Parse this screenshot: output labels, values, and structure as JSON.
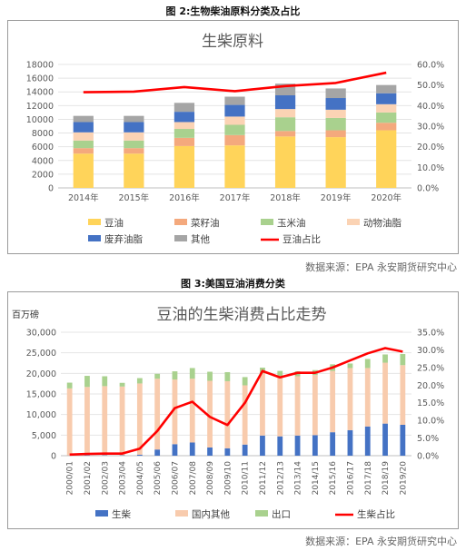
{
  "figure1": {
    "caption": "图 2:生物柴油原料分类及占比",
    "source": "数据来源：EPA  永安期货研究中心",
    "chart_data": {
      "type": "bar",
      "title": "生柴原料",
      "categories": [
        "2014年",
        "2015年",
        "2016年",
        "2017年",
        "2018年",
        "2019年",
        "2020年"
      ],
      "y_ticks": [
        "0",
        "2000",
        "4000",
        "6000",
        "8000",
        "10000",
        "12000",
        "14000",
        "16000",
        "18000"
      ],
      "y2_ticks": [
        "0.0%",
        "10.0%",
        "20.0%",
        "30.0%",
        "40.0%",
        "50.0%",
        "60.0%"
      ],
      "ylim": [
        0,
        18000
      ],
      "y2lim": [
        0,
        0.6
      ],
      "grid": true,
      "legend_position": "bottom",
      "series": [
        {
          "name": "豆油",
          "color": "#ffd45a",
          "values": [
            5000,
            5000,
            6100,
            6200,
            7500,
            7400,
            8400
          ]
        },
        {
          "name": "菜籽油",
          "color": "#f4a97d",
          "values": [
            800,
            800,
            1200,
            1500,
            800,
            1000,
            1100
          ]
        },
        {
          "name": "玉米油",
          "color": "#a9d18e",
          "values": [
            1100,
            1100,
            1300,
            1500,
            2000,
            1800,
            1500
          ]
        },
        {
          "name": "动物油脂",
          "color": "#fbd3b4",
          "values": [
            1200,
            1200,
            1000,
            1200,
            1200,
            1200,
            1200
          ]
        },
        {
          "name": "废弃油脂",
          "color": "#4472c4",
          "values": [
            1500,
            1500,
            1500,
            1700,
            2000,
            1700,
            1600
          ]
        },
        {
          "name": "其他",
          "color": "#a5a5a5",
          "values": [
            900,
            900,
            1300,
            1200,
            1700,
            1400,
            1200
          ]
        }
      ],
      "line_series": [
        {
          "name": "豆油占比",
          "color": "#ff0000",
          "axis": "right",
          "values": [
            0.465,
            0.468,
            0.49,
            0.47,
            0.495,
            0.51,
            0.56
          ]
        }
      ]
    }
  },
  "figure2": {
    "caption": "图 3:美国豆油消费分类",
    "source": "数据来源：EPA  永安期货研究中心",
    "chart_data": {
      "type": "bar",
      "title": "豆油的生柴消费占比走势",
      "ylabel": "百万磅",
      "categories": [
        "2000/01",
        "2001/02",
        "2002/03",
        "2003/04",
        "2004/05",
        "2005/06",
        "2006/07",
        "2007/08",
        "2008/09",
        "2009/10",
        "2010/11",
        "2011/12",
        "2012/13",
        "2013/14",
        "2014/15",
        "2015/16",
        "2016/17",
        "2017/18",
        "2018/19",
        "2019/20"
      ],
      "y_ticks": [
        "0",
        "5,000",
        "10,000",
        "15,000",
        "20,000",
        "25,000",
        "30,000"
      ],
      "y2_ticks": [
        "0.0%",
        "5.0%",
        "10.0%",
        "15.0%",
        "20.0%",
        "25.0%",
        "30.0%",
        "35.0%"
      ],
      "ylim": [
        0,
        30000
      ],
      "y2lim": [
        0,
        0.35
      ],
      "grid": true,
      "legend_position": "bottom",
      "series": [
        {
          "name": "生柴",
          "color": "#4472c4",
          "values": [
            50,
            100,
            100,
            100,
            250,
            1500,
            2800,
            3200,
            2000,
            1800,
            2700,
            4900,
            4700,
            4900,
            5000,
            5700,
            6200,
            7100,
            7800,
            7500
          ]
        },
        {
          "name": "国内其他",
          "color": "#f8cbad",
          "values": [
            16300,
            16600,
            16800,
            16700,
            17300,
            17200,
            15700,
            15500,
            16200,
            16300,
            14400,
            15100,
            14700,
            14400,
            14600,
            14900,
            15100,
            14200,
            14800,
            14500
          ]
        },
        {
          "name": "出口",
          "color": "#a9d18e",
          "values": [
            1400,
            2700,
            2400,
            900,
            1300,
            1200,
            2000,
            2600,
            2200,
            2200,
            2000,
            1400,
            1200,
            1200,
            1200,
            1600,
            1100,
            2200,
            2000,
            2700
          ]
        }
      ],
      "line_series": [
        {
          "name": "生柴占比",
          "color": "#ff0000",
          "axis": "right",
          "values": [
            0.003,
            0.005,
            0.006,
            0.006,
            0.02,
            0.07,
            0.135,
            0.153,
            0.11,
            0.087,
            0.15,
            0.24,
            0.222,
            0.235,
            0.235,
            0.25,
            0.27,
            0.29,
            0.305,
            0.295
          ]
        }
      ]
    }
  }
}
